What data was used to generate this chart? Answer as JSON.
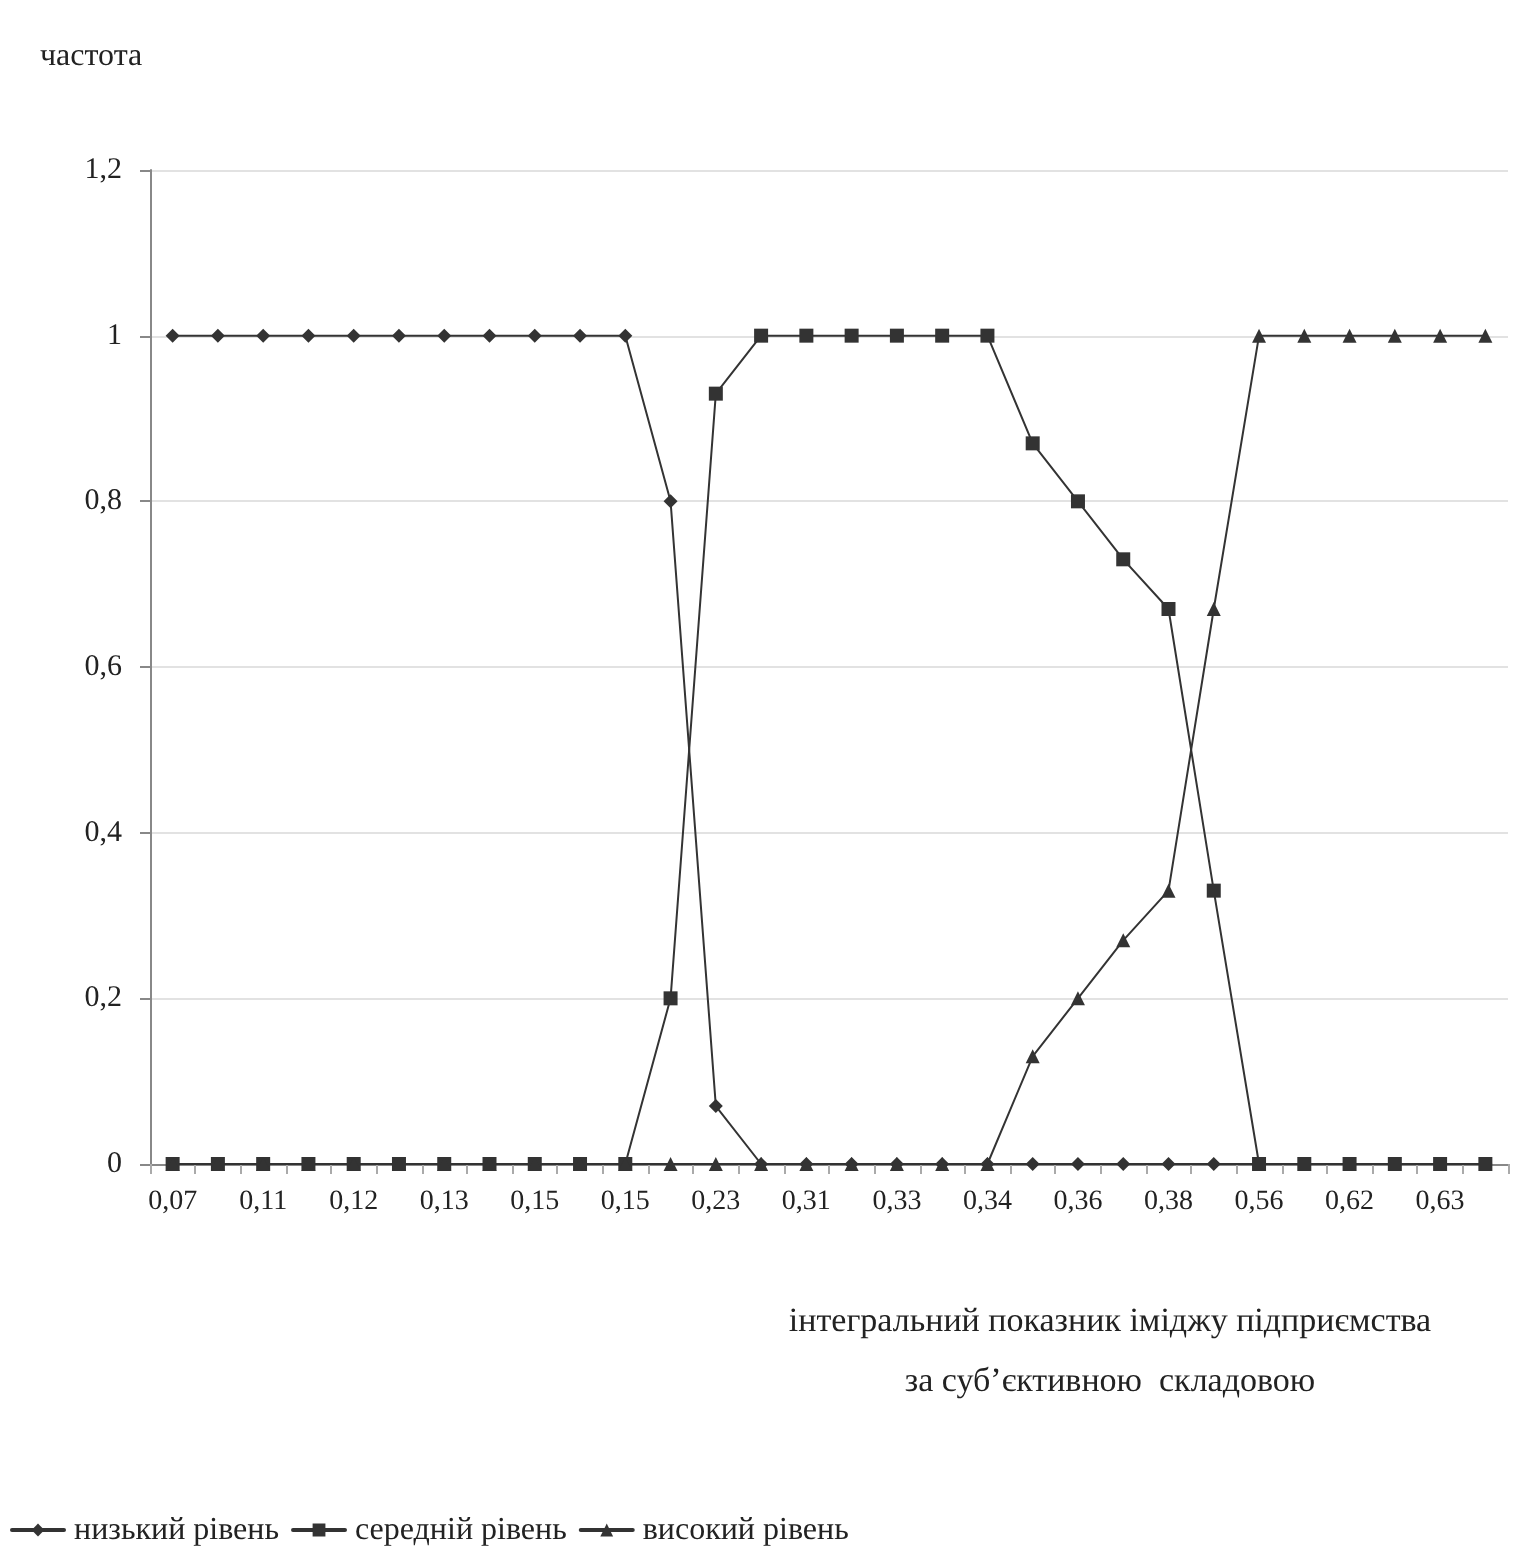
{
  "chart_data": {
    "type": "line",
    "ylabel": "частота",
    "xlabel": "інтегральний показник іміджу підприємства\nза суб’єктивною  складовою",
    "categories": [
      "0,07",
      null,
      "0,11",
      null,
      "0,12",
      null,
      "0,13",
      null,
      "0,15",
      null,
      "0,15",
      null,
      "0,23",
      null,
      "0,31",
      null,
      "0,33",
      null,
      "0,34",
      null,
      "0,36",
      null,
      "0,38",
      null,
      "0,56",
      null,
      "0,62",
      null,
      "0,63",
      null
    ],
    "series": [
      {
        "name": "низький рівень",
        "color": "#333333",
        "marker": "diamond",
        "values": [
          1,
          1,
          1,
          1,
          1,
          1,
          1,
          1,
          1,
          1,
          1,
          0.8,
          0.07,
          0,
          0,
          0,
          0,
          0,
          0,
          0,
          0,
          0,
          0,
          0,
          0,
          0,
          0,
          0,
          0,
          0
        ]
      },
      {
        "name": "середній рівень",
        "color": "#333333",
        "marker": "square",
        "values": [
          0,
          0,
          0,
          0,
          0,
          0,
          0,
          0,
          0,
          0,
          0,
          0.2,
          0.93,
          1,
          1,
          1,
          1,
          1,
          1,
          0.87,
          0.8,
          0.73,
          0.67,
          0.33,
          0,
          0,
          0,
          0,
          0,
          0
        ]
      },
      {
        "name": "високий рівень",
        "color": "#333333",
        "marker": "triangle",
        "values": [
          0,
          0,
          0,
          0,
          0,
          0,
          0,
          0,
          0,
          0,
          0,
          0,
          0,
          0,
          0,
          0,
          0,
          0,
          0,
          0.13,
          0.2,
          0.27,
          0.33,
          0.67,
          1,
          1,
          1,
          1,
          1,
          1
        ]
      }
    ],
    "ylim": [
      0,
      1.2
    ],
    "yticks": [
      0,
      {
        "value": 0.2,
        "label": "0,2"
      },
      {
        "value": 0.4,
        "label": "0,4"
      },
      {
        "value": 0.6,
        "label": "0,6"
      },
      {
        "value": 0.8,
        "label": "0,8"
      },
      1,
      {
        "value": 1.2,
        "label": "1,2"
      }
    ],
    "grid": "y",
    "legend": "bottom left",
    "line_style": "solid"
  }
}
